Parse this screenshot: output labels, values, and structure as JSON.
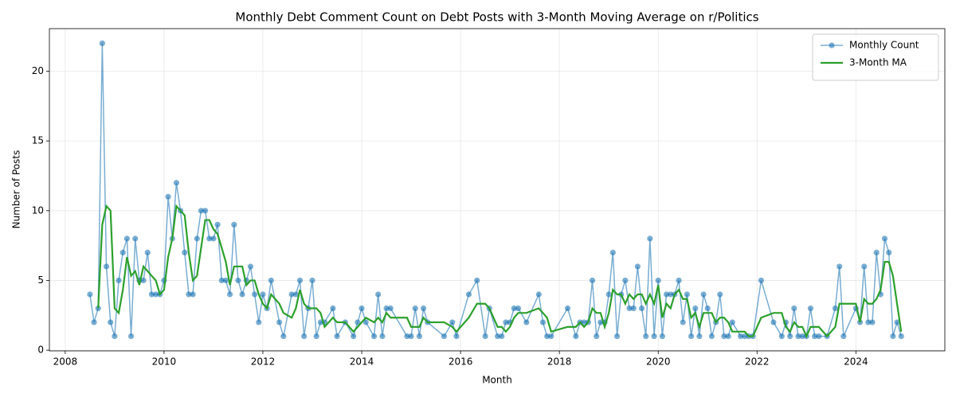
{
  "chart_data": {
    "type": "line",
    "title": "Monthly Debt Comment Count on Debt Posts with 3-Month Moving Average on r/Politics",
    "x_label": "Month",
    "y_label": "Number of Posts",
    "x": [
      2008.5,
      2008.583,
      2008.667,
      2008.75,
      2008.833,
      2008.917,
      2009,
      2009.083,
      2009.167,
      2009.25,
      2009.333,
      2009.417,
      2009.5,
      2009.583,
      2009.667,
      2009.75,
      2009.833,
      2009.917,
      2010,
      2010.083,
      2010.167,
      2010.25,
      2010.333,
      2010.417,
      2010.5,
      2010.583,
      2010.667,
      2010.75,
      2010.833,
      2010.917,
      2011,
      2011.083,
      2011.167,
      2011.25,
      2011.333,
      2011.417,
      2011.5,
      2011.583,
      2011.667,
      2011.75,
      2011.833,
      2011.917,
      2012,
      2012.083,
      2012.167,
      2012.333,
      2012.417,
      2012.583,
      2012.667,
      2012.75,
      2012.833,
      2012.917,
      2013,
      2013.083,
      2013.167,
      2013.25,
      2013.417,
      2013.5,
      2013.667,
      2013.833,
      2013.917,
      2014,
      2014.083,
      2014.25,
      2014.333,
      2014.417,
      2014.5,
      2014.583,
      2014.917,
      2015,
      2015.083,
      2015.167,
      2015.25,
      2015.333,
      2015.667,
      2015.833,
      2015.917,
      2016.167,
      2016.333,
      2016.5,
      2016.583,
      2016.75,
      2016.833,
      2016.917,
      2017,
      2017.083,
      2017.167,
      2017.333,
      2017.583,
      2017.667,
      2017.75,
      2017.833,
      2018.167,
      2018.333,
      2018.417,
      2018.5,
      2018.583,
      2018.667,
      2018.75,
      2018.833,
      2018.917,
      2019,
      2019.083,
      2019.167,
      2019.25,
      2019.333,
      2019.417,
      2019.5,
      2019.583,
      2019.667,
      2019.75,
      2019.833,
      2019.917,
      2020,
      2020.083,
      2020.167,
      2020.25,
      2020.333,
      2020.417,
      2020.5,
      2020.583,
      2020.667,
      2020.75,
      2020.833,
      2020.917,
      2021,
      2021.083,
      2021.167,
      2021.25,
      2021.333,
      2021.417,
      2021.5,
      2021.667,
      2021.75,
      2021.833,
      2021.917,
      2022.083,
      2022.333,
      2022.5,
      2022.583,
      2022.667,
      2022.75,
      2022.833,
      2022.917,
      2023,
      2023.083,
      2023.167,
      2023.25,
      2023.417,
      2023.583,
      2023.667,
      2023.75,
      2024,
      2024.083,
      2024.167,
      2024.25,
      2024.333,
      2024.417,
      2024.5,
      2024.583,
      2024.667,
      2024.75,
      2024.833,
      2024.917
    ],
    "series": [
      {
        "name": "Monthly Count",
        "color": "#1f77b4",
        "marker": true,
        "values": [
          4,
          2,
          3,
          22,
          6,
          2,
          1,
          5,
          7,
          8,
          1,
          8,
          5,
          5,
          7,
          4,
          4,
          4,
          5,
          11,
          8,
          12,
          10,
          7,
          4,
          4,
          8,
          10,
          10,
          8,
          8,
          9,
          5,
          5,
          4,
          9,
          5,
          4,
          5,
          6,
          4,
          2,
          4,
          3,
          5,
          2,
          1,
          4,
          4,
          5,
          1,
          3,
          5,
          1,
          2,
          2,
          3,
          1,
          2,
          1,
          2,
          3,
          2,
          1,
          4,
          1,
          3,
          3,
          1,
          1,
          3,
          1,
          3,
          2,
          1,
          2,
          1,
          4,
          5,
          1,
          3,
          1,
          1,
          2,
          2,
          3,
          3,
          2,
          4,
          2,
          1,
          1,
          3,
          1,
          2,
          2,
          2,
          5,
          1,
          2,
          2,
          4,
          7,
          1,
          4,
          5,
          3,
          3,
          6,
          3,
          1,
          8,
          1,
          5,
          1,
          4,
          4,
          4,
          5,
          2,
          4,
          1,
          3,
          1,
          4,
          3,
          1,
          2,
          4,
          1,
          1,
          2,
          1,
          1,
          1,
          1,
          5,
          2,
          1,
          2,
          1,
          3,
          1,
          1,
          1,
          3,
          1,
          1,
          1,
          3,
          6,
          1,
          3,
          2,
          6,
          2,
          2,
          7,
          4,
          8,
          7,
          1,
          2,
          1
        ]
      },
      {
        "name": "3-Month MA",
        "color": "#2ca02c",
        "marker": false,
        "values": [
          null,
          null,
          3,
          9,
          10.33,
          10,
          3,
          2.67,
          4.33,
          6.67,
          5.33,
          5.67,
          4.67,
          6,
          5.67,
          5.33,
          5,
          4,
          4.33,
          6.67,
          8,
          10.33,
          10,
          9.67,
          7,
          5,
          5.33,
          7.33,
          9.33,
          9.33,
          8.67,
          8.33,
          7.33,
          6.33,
          4.67,
          6,
          6,
          6,
          4.67,
          5,
          5,
          4,
          3.33,
          3,
          4,
          3.33,
          2.67,
          2.33,
          3,
          4.33,
          3.33,
          3,
          3,
          3,
          2.67,
          1.67,
          2.33,
          2,
          2,
          1.33,
          1.67,
          2,
          2.33,
          2,
          2.33,
          2,
          2.67,
          2.33,
          2.33,
          1.67,
          1.67,
          1.67,
          2.33,
          2,
          2,
          1.67,
          1.33,
          2.33,
          3.33,
          3.33,
          3,
          1.67,
          1.67,
          1.33,
          1.67,
          2.33,
          2.67,
          2.67,
          3,
          2.67,
          2.33,
          1.33,
          1.67,
          1.67,
          2,
          1.67,
          2,
          3,
          2.67,
          2.67,
          1.67,
          2.67,
          4.33,
          4,
          4,
          3.33,
          4,
          3.67,
          4,
          4,
          3.33,
          4,
          3.33,
          4.67,
          2.33,
          3.33,
          3,
          4,
          4.33,
          3.67,
          3.67,
          2.33,
          2.67,
          1.67,
          2.67,
          2.67,
          2.67,
          2,
          2.33,
          2.33,
          2,
          1.33,
          1.33,
          1.33,
          1,
          1,
          2.33,
          2.67,
          2.67,
          1.67,
          1.33,
          2,
          1.67,
          1.67,
          1,
          1.67,
          1.67,
          1.67,
          1,
          1.67,
          3.33,
          3.33,
          3.33,
          2,
          3.67,
          3.33,
          3.33,
          3.67,
          4.33,
          6.33,
          6.33,
          5.33,
          3.33,
          1.33
        ]
      }
    ],
    "xlim": [
      2007.68,
      2025.8
    ],
    "xticks": [
      2008,
      2010,
      2012,
      2014,
      2016,
      2018,
      2020,
      2022,
      2024
    ],
    "ylim": [
      -0.05,
      23.05
    ],
    "yticks": [
      0,
      5,
      10,
      15,
      20
    ],
    "grid": true,
    "legend": "upper right"
  }
}
